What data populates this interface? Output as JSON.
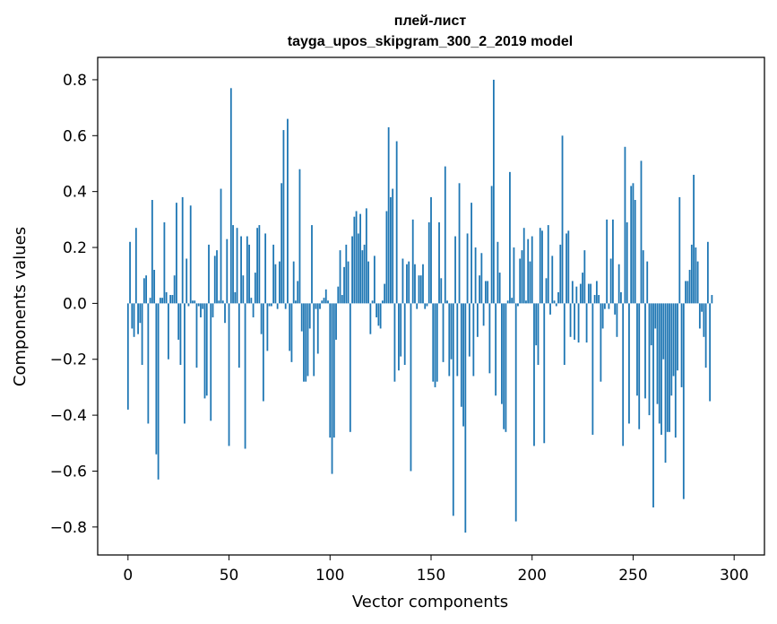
{
  "chart_data": {
    "type": "bar",
    "title": "плей-лист",
    "subtitle": "tayga_upos_skipgram_300_2_2019 model",
    "xlabel": "Vector components",
    "ylabel": "Components values",
    "xlim": [
      -15,
      315
    ],
    "ylim": [
      -0.9,
      0.88
    ],
    "xticks": [
      0,
      50,
      100,
      150,
      200,
      250,
      300
    ],
    "xtick_labels": [
      "0",
      "50",
      "100",
      "150",
      "200",
      "250",
      "300"
    ],
    "yticks": [
      -0.8,
      -0.6,
      -0.4,
      -0.2,
      0.0,
      0.2,
      0.4,
      0.6,
      0.8
    ],
    "ytick_labels": [
      "−0.8",
      "−0.6",
      "−0.4",
      "−0.2",
      "0.0",
      "0.2",
      "0.4",
      "0.6",
      "0.8"
    ],
    "color": "#1f77b4",
    "values": [
      -0.38,
      0.22,
      -0.09,
      -0.12,
      0.27,
      -0.11,
      -0.07,
      -0.22,
      0.09,
      0.1,
      -0.43,
      0.02,
      0.37,
      0.12,
      -0.54,
      -0.63,
      0.02,
      0.02,
      0.29,
      0.04,
      -0.2,
      0.03,
      0.03,
      0.1,
      0.36,
      -0.13,
      -0.22,
      0.38,
      -0.43,
      0.16,
      -0.01,
      0.35,
      0.01,
      0.01,
      -0.23,
      -0.01,
      -0.05,
      -0.02,
      -0.34,
      -0.33,
      0.21,
      -0.42,
      -0.05,
      0.17,
      0.19,
      0.01,
      0.41,
      0.01,
      -0.07,
      0.23,
      -0.51,
      0.77,
      0.28,
      0.04,
      0.27,
      -0.23,
      0.24,
      0.1,
      -0.52,
      0.24,
      0.21,
      0.02,
      -0.05,
      0.11,
      0.27,
      0.28,
      -0.11,
      -0.35,
      0.25,
      -0.17,
      -0.01,
      -0.01,
      0.21,
      0.14,
      -0.02,
      0.15,
      0.43,
      0.62,
      -0.02,
      0.66,
      -0.17,
      -0.21,
      0.15,
      0.01,
      0.08,
      0.48,
      -0.1,
      -0.28,
      -0.28,
      -0.26,
      -0.09,
      0.28,
      -0.26,
      -0.02,
      -0.18,
      -0.02,
      0.01,
      0.02,
      0.05,
      0.01,
      -0.48,
      -0.61,
      -0.48,
      -0.13,
      0.06,
      0.19,
      0.03,
      0.13,
      0.21,
      0.15,
      -0.46,
      0.24,
      0.31,
      0.33,
      0.25,
      0.32,
      0.19,
      0.21,
      0.34,
      0.15,
      -0.11,
      0.01,
      0.17,
      -0.05,
      -0.08,
      -0.09,
      0.01,
      0.07,
      0.33,
      0.63,
      0.38,
      0.41,
      -0.28,
      0.58,
      -0.24,
      -0.19,
      0.16,
      -0.22,
      0.14,
      0.15,
      -0.6,
      0.3,
      0.14,
      -0.02,
      0.1,
      0.1,
      0.14,
      -0.02,
      -0.01,
      0.29,
      0.38,
      -0.28,
      -0.3,
      -0.28,
      0.29,
      0.09,
      -0.21,
      0.49,
      0.01,
      -0.26,
      -0.2,
      -0.76,
      0.24,
      -0.26,
      0.43,
      -0.37,
      -0.44,
      -0.82,
      0.25,
      -0.19,
      0.36,
      -0.26,
      0.2,
      -0.12,
      0.1,
      0.18,
      -0.08,
      0.08,
      0.08,
      -0.25,
      0.42,
      0.8,
      -0.33,
      0.22,
      0.11,
      -0.36,
      -0.45,
      -0.46,
      0.01,
      0.47,
      0.02,
      0.2,
      -0.78,
      -0.01,
      0.16,
      0.19,
      0.27,
      0.01,
      0.23,
      0.15,
      0.24,
      -0.51,
      -0.15,
      -0.22,
      0.27,
      0.26,
      -0.5,
      0.09,
      0.28,
      -0.04,
      0.17,
      0.01,
      -0.01,
      0.04,
      0.21,
      0.6,
      -0.22,
      0.25,
      0.26,
      -0.12,
      0.08,
      -0.13,
      0.06,
      -0.14,
      0.07,
      0.11,
      0.19,
      -0.14,
      0.07,
      0.07,
      -0.47,
      0.03,
      0.08,
      0.03,
      -0.28,
      -0.09,
      -0.02,
      0.3,
      -0.02,
      0.16,
      0.3,
      -0.04,
      -0.12,
      0.14,
      0.04,
      -0.51,
      0.56,
      0.29,
      -0.43,
      0.42,
      0.43,
      0.37,
      -0.33,
      -0.45,
      0.51,
      0.19,
      -0.34,
      0.15,
      -0.4,
      -0.15,
      -0.73,
      -0.09,
      -0.36,
      -0.43,
      -0.47,
      -0.2,
      -0.57,
      -0.46,
      -0.46,
      -0.33,
      -0.26,
      -0.48,
      -0.24,
      0.38,
      -0.3,
      -0.7,
      0.08,
      0.08,
      0.12,
      0.21,
      0.46,
      0.2,
      0.15,
      -0.09,
      -0.03,
      -0.12,
      -0.23,
      0.22,
      -0.35,
      0.03
    ]
  }
}
